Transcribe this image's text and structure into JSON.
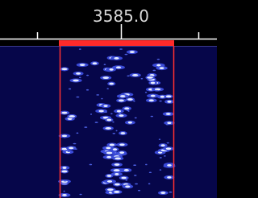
{
  "frequency_label": "3585.0"
}
